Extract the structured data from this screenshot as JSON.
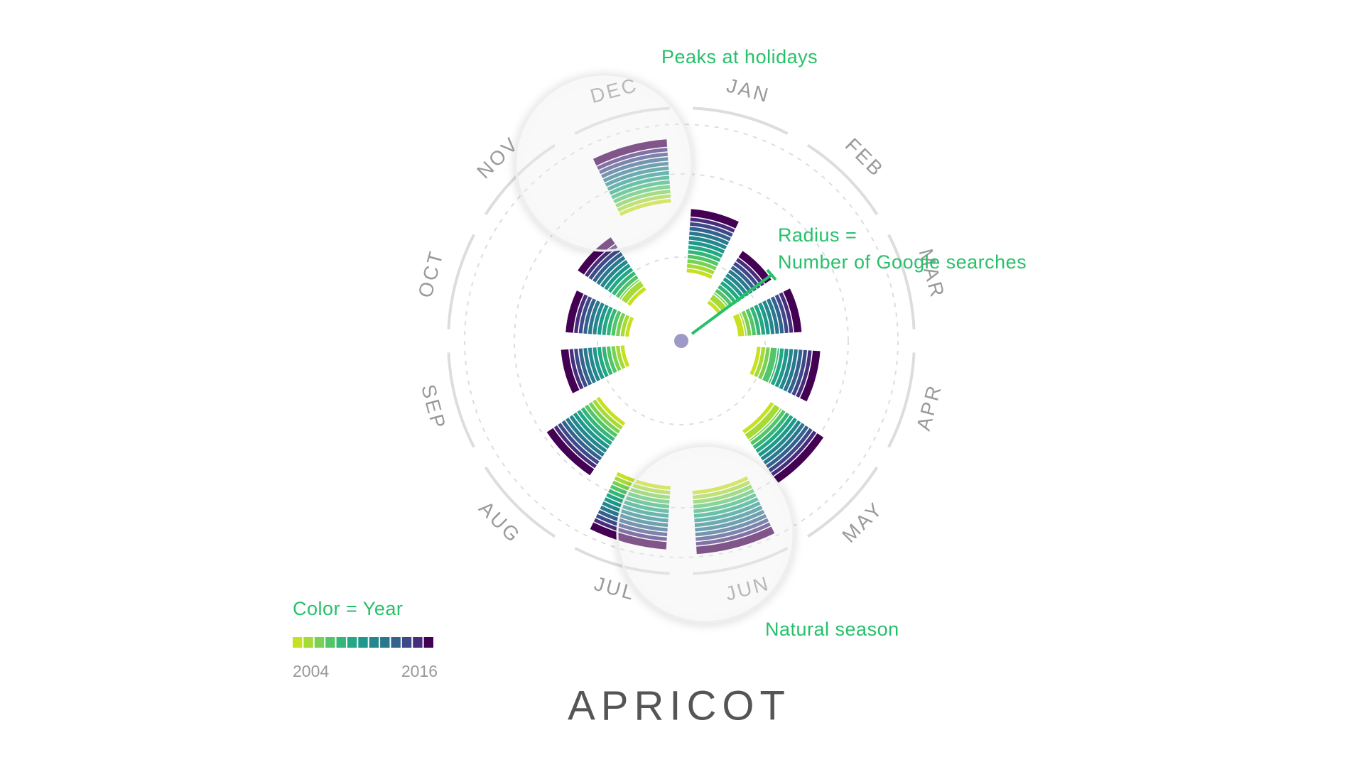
{
  "chart_data": {
    "type": "radial",
    "title": "APRICOT",
    "categories": [
      "JAN",
      "FEB",
      "MAR",
      "APR",
      "MAY",
      "JUN",
      "JUL",
      "AUG",
      "SEP",
      "OCT",
      "NOV",
      "DEC"
    ],
    "rlim": [
      0,
      100
    ],
    "series": [
      {
        "color": "#c8e020",
        "values": [
          33,
          23,
          28,
          36,
          50,
          68,
          66,
          46,
          28,
          26,
          30,
          63
        ]
      },
      {
        "color": "#a5db36",
        "values": [
          35,
          25,
          31,
          38,
          52,
          70,
          68,
          48,
          30,
          28,
          32,
          65
        ]
      },
      {
        "color": "#7ad151",
        "values": [
          37,
          28,
          32,
          40,
          55,
          72,
          70,
          50,
          32,
          30,
          35,
          67
        ]
      },
      {
        "color": "#52c569",
        "values": [
          39,
          29,
          34,
          42,
          56,
          74,
          72,
          52,
          34,
          32,
          36,
          69
        ]
      },
      {
        "color": "#34b679",
        "values": [
          41,
          31,
          36,
          45,
          58,
          76,
          74,
          54,
          36,
          34,
          38,
          71
        ]
      },
      {
        "color": "#22a884",
        "values": [
          43,
          33,
          38,
          46,
          60,
          78,
          76,
          56,
          38,
          36,
          40,
          73
        ]
      },
      {
        "color": "#1f988b",
        "values": [
          45,
          35,
          40,
          48,
          62,
          80,
          78,
          58,
          40,
          38,
          42,
          75
        ]
      },
      {
        "color": "#23888e",
        "values": [
          47,
          37,
          42,
          50,
          64,
          82,
          80,
          60,
          42,
          40,
          44,
          77
        ]
      },
      {
        "color": "#2a788e",
        "values": [
          49,
          39,
          44,
          52,
          66,
          84,
          82,
          62,
          44,
          42,
          46,
          79
        ]
      },
      {
        "color": "#33638d",
        "values": [
          51,
          41,
          46,
          54,
          68,
          86,
          84,
          64,
          46,
          44,
          48,
          81
        ]
      },
      {
        "color": "#3e4989",
        "values": [
          53,
          43,
          48,
          56,
          70,
          88,
          86,
          66,
          48,
          46,
          50,
          83
        ]
      },
      {
        "color": "#472d7b",
        "values": [
          55,
          45,
          50,
          58,
          72,
          90,
          88,
          68,
          50,
          48,
          52,
          85
        ]
      },
      {
        "color": "#440154",
        "values": [
          57,
          47,
          52,
          60,
          74,
          92,
          90,
          70,
          52,
          50,
          54,
          87
        ]
      }
    ],
    "annotations": {
      "holidays": "Peaks at holidays",
      "radius": [
        "Radius =",
        "Number of Google searches"
      ],
      "season": "Natural season"
    },
    "legend": {
      "title": "Color = Year",
      "labels": [
        "2004",
        "2016"
      ]
    }
  }
}
